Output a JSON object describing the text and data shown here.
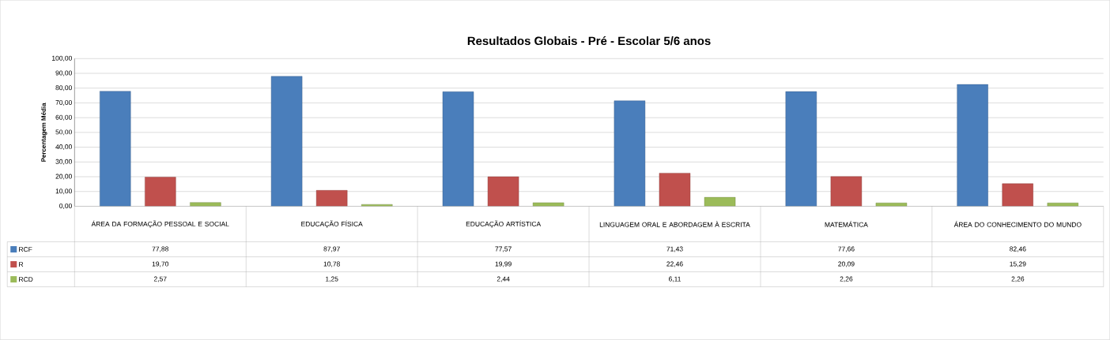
{
  "chart_data": {
    "type": "bar",
    "title": "Resultados Globais - Pré - Escolar 5/6 anos",
    "ylabel": "Percentagem Média",
    "categories": [
      "ÁREA DA FORMAÇÃO PESSOAL E SOCIAL",
      "EDUCAÇÃO FÍSICA",
      "EDUCAÇÃO ARTÍSTICA",
      "LINGUAGEM ORAL E ABORDAGEM À ESCRITA",
      "MATEMÁTICA",
      "ÁREA DO CONHECIMENTO DO MUNDO"
    ],
    "series": [
      {
        "name": "RCF",
        "color": "#4a7ebb",
        "values": [
          77.88,
          87.97,
          77.57,
          71.43,
          77.66,
          82.46
        ],
        "value_labels": [
          "77,88",
          "87,97",
          "77,57",
          "71,43",
          "77,66",
          "82,46"
        ]
      },
      {
        "name": "R",
        "color": "#c0504d",
        "values": [
          19.7,
          10.78,
          19.99,
          22.46,
          20.09,
          15.29
        ],
        "value_labels": [
          "19,70",
          "10,78",
          "19,99",
          "22,46",
          "20,09",
          "15,29"
        ]
      },
      {
        "name": "RCD",
        "color": "#9bbb59",
        "values": [
          2.57,
          1.25,
          2.44,
          6.11,
          2.26,
          2.26
        ],
        "value_labels": [
          "2,57",
          "1,25",
          "2,44",
          "6,11",
          "2,26",
          "2,26"
        ]
      }
    ],
    "ylim": [
      0,
      100
    ],
    "yticks": [
      {
        "value": 0,
        "label": "0,00"
      },
      {
        "value": 10,
        "label": "10,00"
      },
      {
        "value": 20,
        "label": "20,00"
      },
      {
        "value": 30,
        "label": "30,00"
      },
      {
        "value": 40,
        "label": "40,00"
      },
      {
        "value": 50,
        "label": "50,00"
      },
      {
        "value": 60,
        "label": "60,00"
      },
      {
        "value": 70,
        "label": "70,00"
      },
      {
        "value": 80,
        "label": "80,00"
      },
      {
        "value": 90,
        "label": "90,00"
      },
      {
        "value": 100,
        "label": "100,00"
      }
    ],
    "grid": "y",
    "legend": "bottom left"
  }
}
